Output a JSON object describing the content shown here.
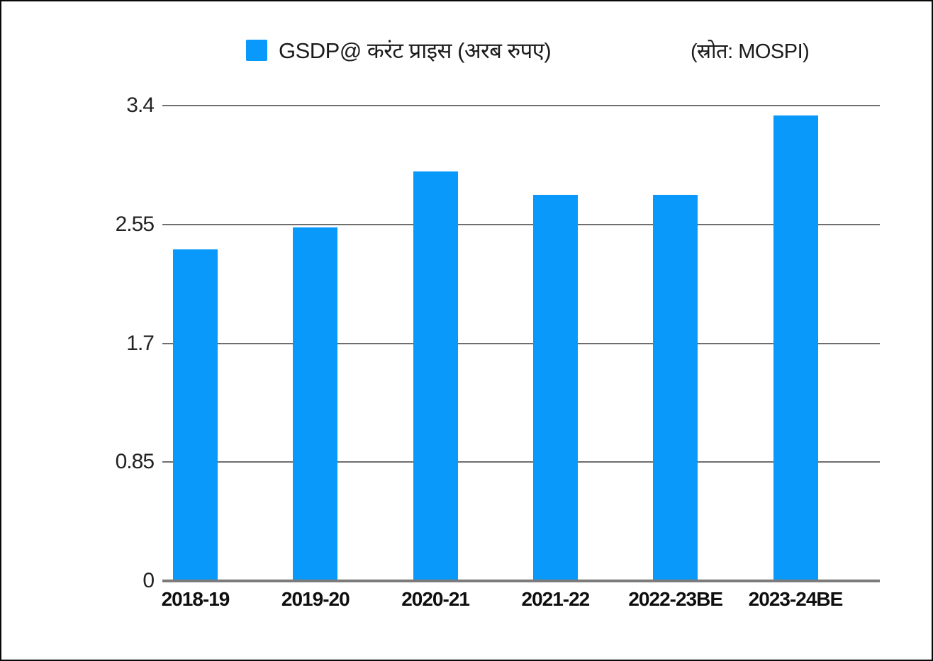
{
  "legend": {
    "label": "GSDP@ करंट प्राइस (अरब रुपए)",
    "swatch_color": "#0899fa"
  },
  "source": {
    "label": "(स्रोत: MOSPI)"
  },
  "chart_data": {
    "type": "bar",
    "title": "GSDP@ करंट प्राइस (अरब रुपए)",
    "source_note": "(स्रोत: MOSPI)",
    "categories": [
      "2018-19",
      "2019-20",
      "2020-21",
      "2021-22",
      "2022-23BE",
      "2023-24BE"
    ],
    "values": [
      2.37,
      2.53,
      2.93,
      2.76,
      2.76,
      3.33
    ],
    "xlabel": "",
    "ylabel": "",
    "ylim": [
      0,
      3.4
    ],
    "yticks": [
      0,
      0.85,
      1.7,
      2.55,
      3.4
    ],
    "y_tick_labels": [
      "0",
      "0.85",
      "1.7",
      "2.55",
      "3.4"
    ],
    "grid": true,
    "legend_position": "top",
    "bar_color": "#0899fa",
    "gridline_color": "#6e6e6e",
    "axis_color": "#7b7b7b"
  }
}
